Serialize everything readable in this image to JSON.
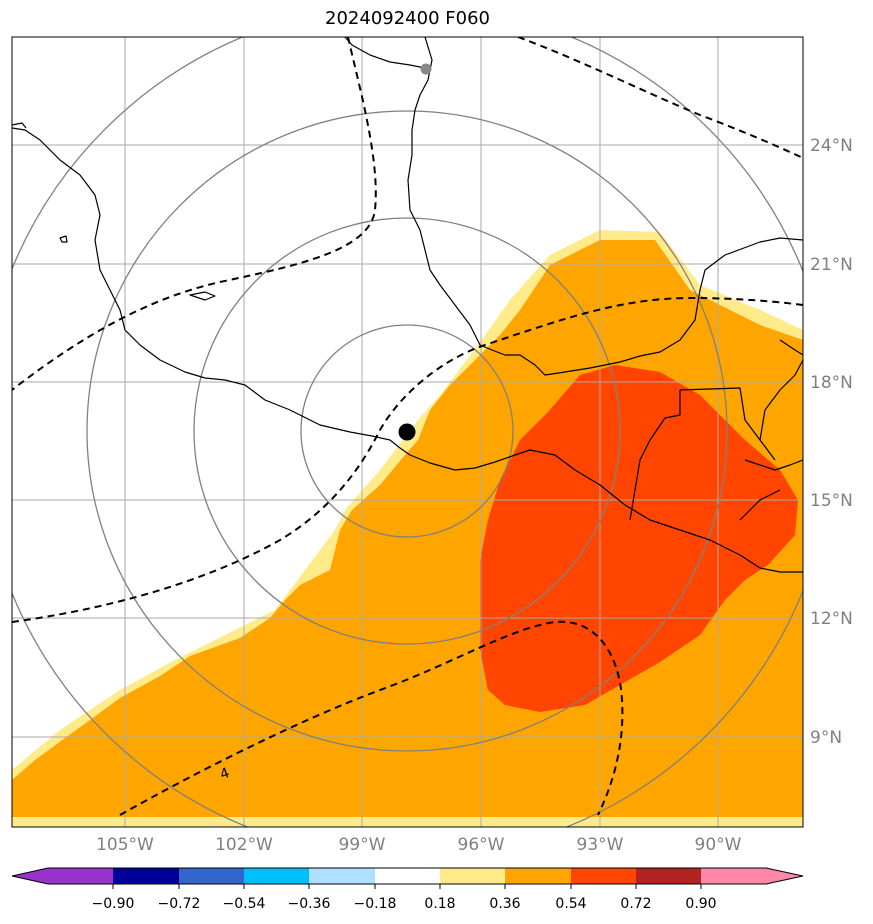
{
  "title": "2024092400 F060",
  "map": {
    "lon_labels": [
      "105°W",
      "102°W",
      "99°W",
      "96°W",
      "93°W",
      "90°W"
    ],
    "lat_labels": [
      "24°N",
      "21°N",
      "18°N",
      "15°N",
      "12°N",
      "9°N"
    ],
    "contour_label": "4",
    "center_marker": "storm-center"
  },
  "colorbar": {
    "ticks": [
      "−0.90",
      "−0.72",
      "−0.54",
      "−0.36",
      "−0.18",
      "0.18",
      "0.36",
      "0.54",
      "0.72",
      "0.90"
    ],
    "colors": [
      "#9933cc",
      "#000099",
      "#3366cc",
      "#00bfff",
      "#b0e0ff",
      "#ffffff",
      "#ffeb8a",
      "#ffa500",
      "#ff4500",
      "#b22222",
      "#ff88aa"
    ]
  }
}
